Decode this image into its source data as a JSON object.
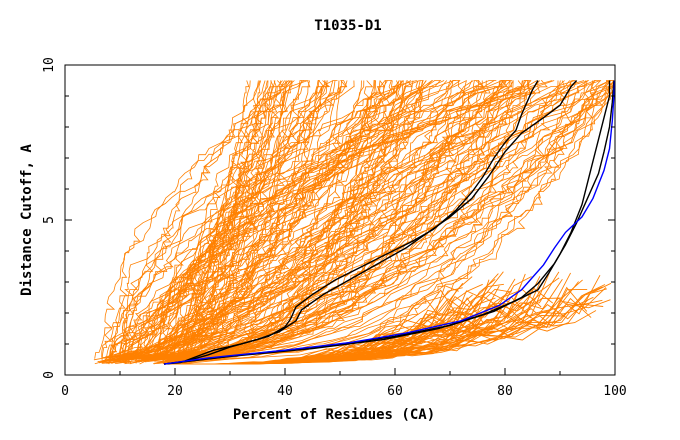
{
  "chart_data": {
    "type": "line",
    "title": "T1035-D1",
    "xlabel": "Percent of Residues (CA)",
    "ylabel": "Distance Cutoff, A",
    "xlim": [
      0,
      100
    ],
    "ylim": [
      0,
      10
    ],
    "x_ticks": [
      "0",
      "20",
      "40",
      "60",
      "80",
      "100"
    ],
    "y_ticks": [
      "0",
      "5",
      "10"
    ],
    "grid": false,
    "legend": "none",
    "colors": {
      "bulk": "#ff8000",
      "black": "#000000",
      "blue": "#0000ff"
    },
    "series": [
      {
        "color": "#000000",
        "values": [
          [
            18,
            0.35
          ],
          [
            21,
            0.4
          ],
          [
            24,
            0.6
          ],
          [
            27,
            0.8
          ],
          [
            32,
            1.0
          ],
          [
            37,
            1.25
          ],
          [
            40,
            1.55
          ],
          [
            41,
            1.8
          ],
          [
            42,
            2.2
          ],
          [
            45,
            2.6
          ],
          [
            49,
            3.05
          ],
          [
            54,
            3.5
          ],
          [
            59,
            3.95
          ],
          [
            63,
            4.3
          ],
          [
            67,
            4.7
          ],
          [
            71,
            5.3
          ],
          [
            74,
            5.9
          ],
          [
            76,
            6.4
          ],
          [
            78,
            7.0
          ],
          [
            80,
            7.5
          ],
          [
            82,
            7.9
          ],
          [
            83,
            8.4
          ],
          [
            84,
            8.8
          ],
          [
            85,
            9.2
          ],
          [
            86,
            9.5
          ]
        ]
      },
      {
        "color": "#000000",
        "values": [
          [
            18,
            0.35
          ],
          [
            22,
            0.45
          ],
          [
            26,
            0.65
          ],
          [
            30,
            0.9
          ],
          [
            35,
            1.15
          ],
          [
            39,
            1.4
          ],
          [
            42,
            1.75
          ],
          [
            43,
            2.1
          ],
          [
            47,
            2.6
          ],
          [
            52,
            3.1
          ],
          [
            57,
            3.6
          ],
          [
            62,
            4.1
          ],
          [
            66,
            4.6
          ],
          [
            70,
            5.1
          ],
          [
            74,
            5.7
          ],
          [
            77,
            6.4
          ],
          [
            80,
            7.2
          ],
          [
            83,
            7.8
          ],
          [
            87,
            8.3
          ],
          [
            90,
            8.7
          ],
          [
            91,
            9.0
          ],
          [
            92,
            9.3
          ],
          [
            93,
            9.5
          ]
        ]
      },
      {
        "color": "#000000",
        "values": [
          [
            18,
            0.35
          ],
          [
            30,
            0.6
          ],
          [
            45,
            0.85
          ],
          [
            58,
            1.15
          ],
          [
            68,
            1.5
          ],
          [
            76,
            1.95
          ],
          [
            82,
            2.4
          ],
          [
            86,
            2.75
          ],
          [
            88,
            3.3
          ],
          [
            90,
            3.9
          ],
          [
            92,
            4.6
          ],
          [
            94,
            5.5
          ],
          [
            95,
            6.2
          ],
          [
            96,
            6.9
          ],
          [
            97,
            7.6
          ],
          [
            98,
            8.3
          ],
          [
            99,
            9.0
          ],
          [
            99,
            9.5
          ]
        ]
      },
      {
        "color": "#000000",
        "values": [
          [
            18,
            0.35
          ],
          [
            32,
            0.65
          ],
          [
            48,
            0.95
          ],
          [
            60,
            1.25
          ],
          [
            70,
            1.6
          ],
          [
            78,
            2.05
          ],
          [
            83,
            2.5
          ],
          [
            86,
            2.95
          ],
          [
            89,
            3.6
          ],
          [
            91,
            4.2
          ],
          [
            93,
            4.9
          ],
          [
            95,
            5.7
          ],
          [
            97,
            6.5
          ],
          [
            98,
            7.2
          ],
          [
            99,
            8.0
          ],
          [
            99.5,
            8.8
          ],
          [
            99.8,
            9.5
          ]
        ]
      },
      {
        "color": "#0000ff",
        "values": [
          [
            18,
            0.35
          ],
          [
            26,
            0.55
          ],
          [
            40,
            0.8
          ],
          [
            52,
            1.05
          ],
          [
            62,
            1.35
          ],
          [
            72,
            1.75
          ],
          [
            79,
            2.25
          ],
          [
            83,
            2.75
          ],
          [
            85,
            3.15
          ],
          [
            87,
            3.55
          ],
          [
            89,
            4.1
          ],
          [
            91,
            4.6
          ],
          [
            94,
            5.1
          ],
          [
            96,
            5.7
          ],
          [
            98,
            6.6
          ],
          [
            99,
            7.3
          ],
          [
            99.5,
            8.2
          ],
          [
            99.8,
            9.0
          ],
          [
            99.9,
            9.5
          ]
        ]
      }
    ]
  }
}
